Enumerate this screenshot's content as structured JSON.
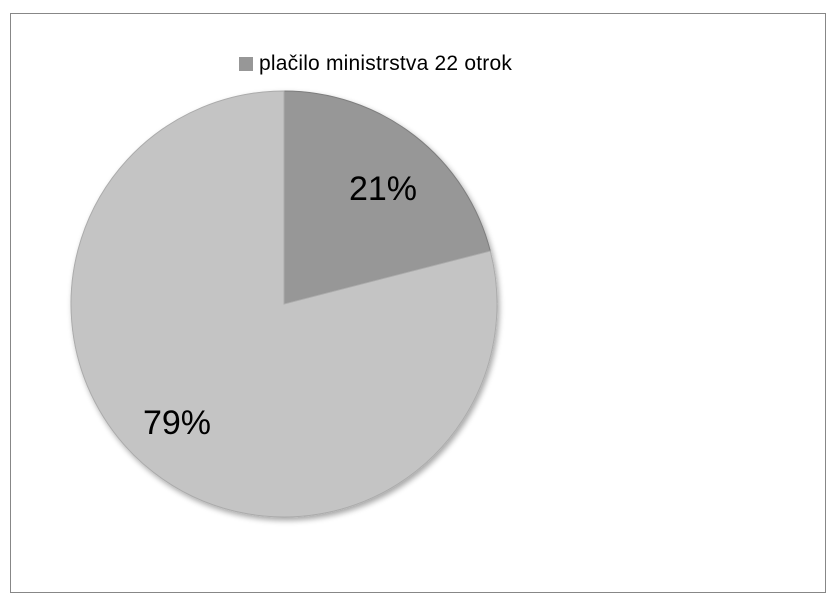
{
  "chart_data": {
    "type": "pie",
    "legend": {
      "entries": [
        "plačilo ministrstva 22 otrok"
      ],
      "placement": "top"
    },
    "slices": [
      {
        "name": "plačilo ministrstva 22 otrok",
        "value": 21,
        "label": "21%",
        "color": "#979797",
        "edge_color": "#7e7e7e"
      },
      {
        "value": 79,
        "label": "79%",
        "color": "#c4c4c4",
        "edge_color": "#ababab"
      }
    ]
  }
}
